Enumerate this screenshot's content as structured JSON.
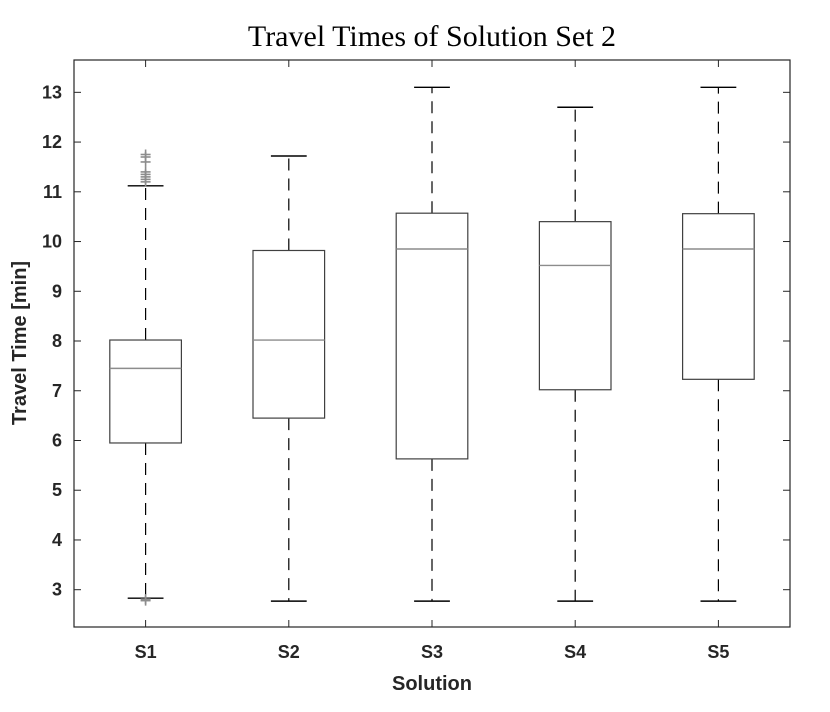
{
  "chart_data": {
    "type": "box",
    "title": "Travel Times of  Solution Set 2",
    "xlabel": "Solution",
    "ylabel": "Travel Time [min]",
    "categories": [
      "S1",
      "S2",
      "S3",
      "S4",
      "S5"
    ],
    "ylim": [
      2.25,
      13.65
    ],
    "yticks": [
      3,
      4,
      5,
      6,
      7,
      8,
      9,
      10,
      11,
      12,
      13
    ],
    "boxes": [
      {
        "name": "S1",
        "whisker_low": 2.83,
        "q1": 5.95,
        "median": 7.45,
        "q3": 8.02,
        "whisker_high": 11.12,
        "outliers_high": [
          11.2,
          11.25,
          11.3,
          11.35,
          11.4,
          11.6,
          11.7,
          11.75
        ],
        "outliers_low": [
          2.78,
          2.81
        ]
      },
      {
        "name": "S2",
        "whisker_low": 2.77,
        "q1": 6.45,
        "median": 8.02,
        "q3": 9.82,
        "whisker_high": 11.72,
        "outliers_high": [],
        "outliers_low": []
      },
      {
        "name": "S3",
        "whisker_low": 2.77,
        "q1": 5.63,
        "median": 9.85,
        "q3": 10.57,
        "whisker_high": 13.1,
        "outliers_high": [],
        "outliers_low": []
      },
      {
        "name": "S4",
        "whisker_low": 2.77,
        "q1": 7.02,
        "median": 9.52,
        "q3": 10.4,
        "whisker_high": 12.7,
        "outliers_high": [],
        "outliers_low": []
      },
      {
        "name": "S5",
        "whisker_low": 2.77,
        "q1": 7.23,
        "median": 9.85,
        "q3": 10.56,
        "whisker_high": 13.1,
        "outliers_high": [],
        "outliers_low": []
      }
    ],
    "grid": false,
    "colors": {
      "box": "#404040",
      "median": "#8c8c8c",
      "whisker": "#000000",
      "outlier": "#8c8c8c",
      "axis": "#262626"
    }
  }
}
